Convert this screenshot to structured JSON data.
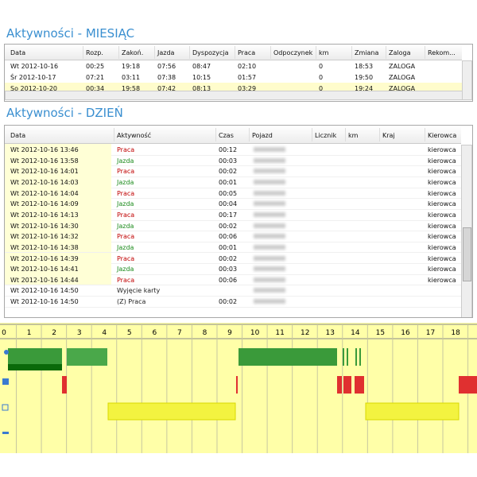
{
  "month_section": {
    "title": "Aktywności - MIESIĄC",
    "table": {
      "headers": [
        "Data",
        "Rozp.",
        "Zakoń.",
        "Jazda",
        "Dyspozycja",
        "Praca",
        "Odpoczynek",
        "km",
        "Zmiana",
        "Zaloga",
        "Rekom..."
      ],
      "rows": [
        [
          "Wt 2012-10-16",
          "00:25",
          "19:18",
          "07:56",
          "08:47",
          "02:10",
          "",
          "0",
          "18:53",
          "ZALOGA",
          ""
        ],
        [
          "Śr 2012-10-17",
          "07:21",
          "03:11",
          "07:38",
          "10:15",
          "01:57",
          "",
          "0",
          "19:50",
          "ZALOGA",
          ""
        ],
        [
          "So 2012-10-20",
          "00:34",
          "19:58",
          "07:42",
          "08:13",
          "03:29",
          "",
          "0",
          "19:24",
          "ZALOGA",
          ""
        ]
      ]
    }
  },
  "day_section": {
    "title": "Aktywności - DZIEŃ",
    "table": {
      "headers": [
        "Data",
        "Aktywność",
        "Czas",
        "Pojazd",
        "Licznik",
        "km",
        "Kraj",
        "Kierowca"
      ],
      "rows": [
        [
          "Wt 2012-10-16 13:46",
          "Praca",
          "00:12",
          "kierowca"
        ],
        [
          "Wt 2012-10-16 13:58",
          "Jazda",
          "00:03",
          "kierowca"
        ],
        [
          "Wt 2012-10-16 14:01",
          "Praca",
          "00:02",
          "kierowca"
        ],
        [
          "Wt 2012-10-16 14:03",
          "Jazda",
          "00:01",
          "kierowca"
        ],
        [
          "Wt 2012-10-16 14:04",
          "Praca",
          "00:05",
          "kierowca"
        ],
        [
          "Wt 2012-10-16 14:09",
          "Jazda",
          "00:04",
          "kierowca"
        ],
        [
          "Wt 2012-10-16 14:13",
          "Praca",
          "00:17",
          "kierowca"
        ],
        [
          "Wt 2012-10-16 14:30",
          "Jazda",
          "00:02",
          "kierowca"
        ],
        [
          "Wt 2012-10-16 14:32",
          "Praca",
          "00:06",
          "kierowca"
        ],
        [
          "Wt 2012-10-16 14:38",
          "Jazda",
          "00:01",
          "kierowca"
        ],
        [
          "Wt 2012-10-16 14:39",
          "Praca",
          "00:02",
          "kierowca"
        ],
        [
          "Wt 2012-10-16 14:41",
          "Jazda",
          "00:03",
          "kierowca"
        ],
        [
          "Wt 2012-10-16 14:44",
          "Praca",
          "00:06",
          "kierowca"
        ],
        [
          "Wt 2012-10-16 14:50",
          "Wyjęcie karty",
          "",
          ""
        ],
        [
          "Wt 2012-10-16 14:50",
          "(Z) Praca",
          "00:02",
          ""
        ]
      ],
      "activity_colors": [
        "#c00000",
        "#1a8a1a",
        "#c00000",
        "#1a8a1a",
        "#c00000",
        "#1a8a1a",
        "#c00000",
        "#1a8a1a",
        "#c00000",
        "#1a8a1a",
        "#c00000",
        "#1a8a1a",
        "#c00000",
        "#222",
        "#222"
      ]
    }
  },
  "timeline": {
    "hours": [
      0,
      1,
      2,
      3,
      4,
      5,
      6,
      7,
      8,
      9,
      10,
      11,
      12,
      13,
      14,
      15,
      16,
      17,
      18
    ]
  }
}
